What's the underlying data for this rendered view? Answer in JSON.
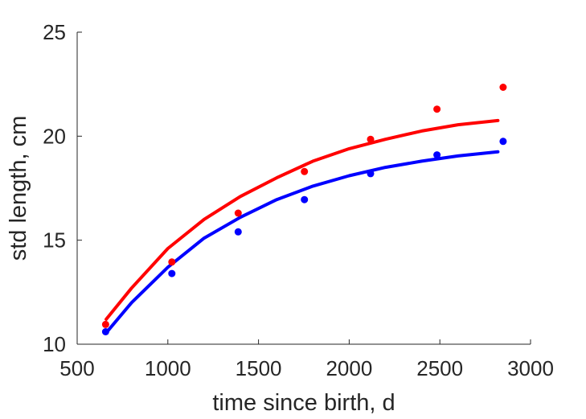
{
  "chart_data": {
    "type": "scatter",
    "title": "",
    "xlabel": "time since birth, d",
    "ylabel": "std length, cm",
    "xlim": [
      500,
      3000
    ],
    "ylim": [
      10,
      25
    ],
    "xticks": [
      500,
      1000,
      1500,
      2000,
      2500,
      3000
    ],
    "yticks": [
      10,
      15,
      20,
      25
    ],
    "xtick_labels": [
      "500",
      "1000",
      "1500",
      "2000",
      "2500",
      "3000"
    ],
    "ytick_labels": [
      "10",
      "15",
      "20",
      "25"
    ],
    "grid": false,
    "series": [
      {
        "color": "#ff0000",
        "points": [
          [
            657,
            10.95
          ],
          [
            1022,
            13.95
          ],
          [
            1388,
            16.3
          ],
          [
            1753,
            18.3
          ],
          [
            2118,
            19.85
          ],
          [
            2484,
            21.3
          ],
          [
            2849,
            22.35
          ]
        ],
        "fit_line": [
          [
            660,
            11.2
          ],
          [
            800,
            12.7
          ],
          [
            1000,
            14.6
          ],
          [
            1200,
            16.0
          ],
          [
            1400,
            17.1
          ],
          [
            1600,
            18.0
          ],
          [
            1800,
            18.8
          ],
          [
            2000,
            19.4
          ],
          [
            2200,
            19.85
          ],
          [
            2400,
            20.25
          ],
          [
            2600,
            20.55
          ],
          [
            2820,
            20.75
          ]
        ]
      },
      {
        "color": "#0000ff",
        "points": [
          [
            657,
            10.6
          ],
          [
            1022,
            13.4
          ],
          [
            1388,
            15.4
          ],
          [
            1753,
            16.95
          ],
          [
            2118,
            18.2
          ],
          [
            2484,
            19.1
          ],
          [
            2849,
            19.75
          ]
        ],
        "fit_line": [
          [
            660,
            10.55
          ],
          [
            800,
            12.0
          ],
          [
            1000,
            13.7
          ],
          [
            1200,
            15.1
          ],
          [
            1400,
            16.1
          ],
          [
            1600,
            16.95
          ],
          [
            1800,
            17.6
          ],
          [
            2000,
            18.1
          ],
          [
            2200,
            18.5
          ],
          [
            2400,
            18.8
          ],
          [
            2600,
            19.05
          ],
          [
            2820,
            19.25
          ]
        ]
      }
    ]
  }
}
